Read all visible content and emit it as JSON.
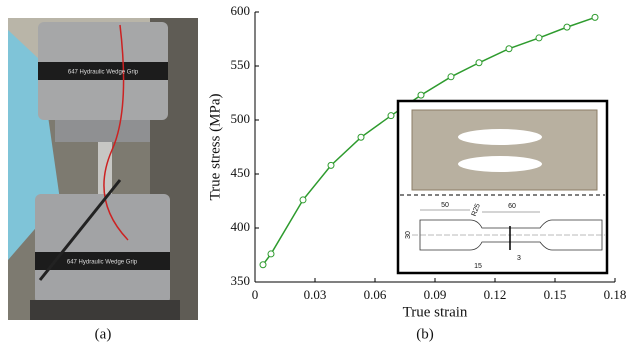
{
  "chart_data": {
    "type": "line",
    "x_label": "True strain",
    "y_label": "True stress (MPa)",
    "x": [
      0.004,
      0.008,
      0.024,
      0.038,
      0.053,
      0.068,
      0.083,
      0.098,
      0.112,
      0.127,
      0.142,
      0.156,
      0.17
    ],
    "series": [
      {
        "color": "#2e9b2e",
        "values": [
          366,
          376,
          426,
          458,
          484,
          504,
          523,
          540,
          553,
          566,
          576,
          586,
          595
        ]
      }
    ],
    "xlim": [
      0,
      0.18
    ],
    "xticks": [
      0,
      0.03,
      0.06,
      0.09,
      0.12,
      0.15,
      0.18
    ],
    "ylim": [
      350,
      600
    ],
    "yticks": [
      350,
      400,
      450,
      500,
      550,
      600
    ],
    "grid": false
  },
  "figure": {
    "captions": [
      "(a)",
      "(b)"
    ],
    "photo_labels": [
      "647 Hydraulic Wedge Grip",
      "647 Hydraulic Wedge Grip"
    ],
    "drawing_labels": [
      "50",
      "60",
      "R25",
      "30",
      "15",
      "3"
    ]
  }
}
